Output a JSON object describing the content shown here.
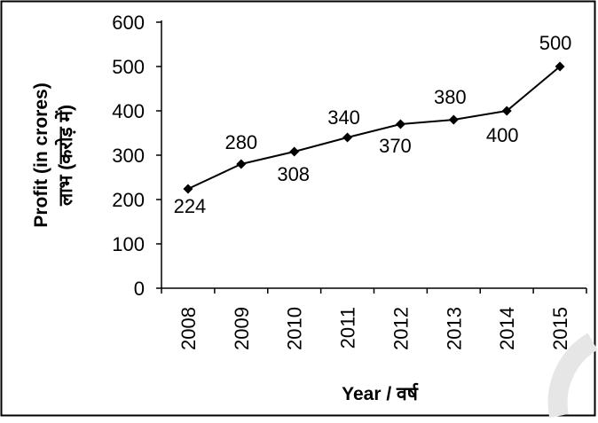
{
  "chart_data": {
    "type": "line",
    "xlabel": "Year / वर्ष",
    "ylabel_line1": "Profit (in crores)",
    "ylabel_line2": "लाभ (करोड़ में)",
    "categories": [
      "2008",
      "2009",
      "2010",
      "2011",
      "2012",
      "2013",
      "2014",
      "2015"
    ],
    "series": [
      {
        "values": [
          224,
          280,
          308,
          340,
          370,
          380,
          400,
          500
        ]
      }
    ],
    "data_labels": [
      "224",
      "280",
      "308",
      "340",
      "370",
      "380",
      "400",
      "500"
    ],
    "ylim": [
      0,
      600
    ],
    "yticks": [
      "0",
      "100",
      "200",
      "300",
      "400",
      "500",
      "600"
    ],
    "grid": false,
    "legend": "none",
    "marker": "diamond",
    "colors": {
      "line": "#000000",
      "frame": "#000000",
      "background": "#ffffff",
      "watermark": "#e6e6e6"
    }
  }
}
